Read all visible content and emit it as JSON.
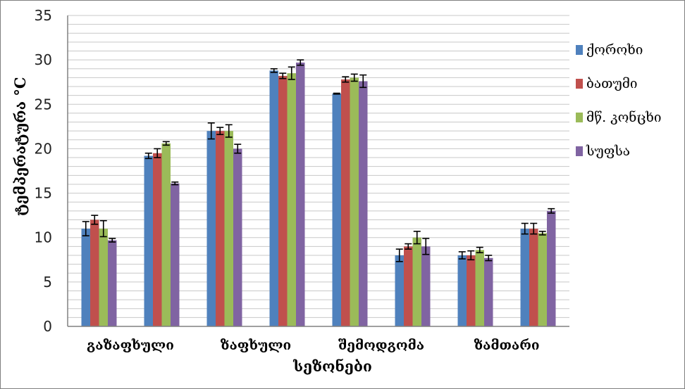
{
  "chart_data": {
    "type": "bar",
    "title": "",
    "xlabel": "სეზონები",
    "ylabel": "ტემპერატურა °C",
    "ylim": [
      0,
      35
    ],
    "yticks": [
      0,
      5,
      10,
      15,
      20,
      25,
      30,
      35
    ],
    "grid": true,
    "legend_position": "right",
    "categories": [
      "გაზაფხული",
      "",
      "ზაფხული",
      "",
      "შემოდგომა",
      "",
      "ზამთარი",
      ""
    ],
    "category_labels": [
      "გაზაფხული",
      "ზაფხული",
      "შემოდგომა",
      "ზამთარი"
    ],
    "error_bars": true,
    "series": [
      {
        "name": "ქოროხი",
        "color": "#4f81bd",
        "values": [
          11.0,
          19.2,
          22.0,
          28.8,
          26.2,
          8.0,
          8.0,
          11.0
        ],
        "errors": [
          0.8,
          0.3,
          0.9,
          0.2,
          0.05,
          0.7,
          0.4,
          0.6
        ]
      },
      {
        "name": "ბათუმი",
        "color": "#c0504d",
        "values": [
          12.0,
          19.5,
          22.0,
          28.2,
          27.8,
          9.0,
          8.0,
          11.0
        ],
        "errors": [
          0.5,
          0.5,
          0.4,
          0.3,
          0.3,
          0.3,
          0.5,
          0.6
        ]
      },
      {
        "name": "მწ. კონცხი",
        "color": "#9bbb59",
        "values": [
          11.0,
          20.6,
          22.0,
          28.5,
          28.0,
          10.0,
          8.6,
          10.5
        ],
        "errors": [
          0.9,
          0.2,
          0.7,
          0.7,
          0.4,
          0.7,
          0.3,
          0.2
        ]
      },
      {
        "name": "სუფსა",
        "color": "#8064a2",
        "values": [
          9.7,
          16.1,
          20.0,
          29.7,
          27.6,
          9.0,
          7.7,
          13.0
        ],
        "errors": [
          0.2,
          0.15,
          0.5,
          0.3,
          0.7,
          0.9,
          0.3,
          0.25
        ]
      }
    ]
  }
}
